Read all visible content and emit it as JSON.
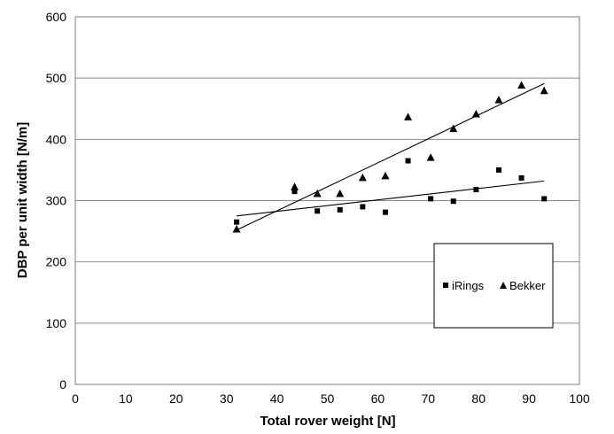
{
  "chart_data": {
    "type": "scatter",
    "title": "",
    "xlabel": "Total rover weight [N]",
    "ylabel": "DBP per unit width [N/m]",
    "xlim": [
      0,
      100
    ],
    "ylim": [
      0,
      600
    ],
    "x_ticks": [
      "0",
      "10",
      "20",
      "30",
      "40",
      "50",
      "60",
      "70",
      "80",
      "90",
      "100"
    ],
    "y_ticks": [
      "0",
      "100",
      "200",
      "300",
      "400",
      "500",
      "600"
    ],
    "grid": "horizontal",
    "legend_position": "lower-right",
    "series": [
      {
        "name": "iRings",
        "marker": "square",
        "color": "#000000",
        "points": [
          [
            32,
            265
          ],
          [
            43.5,
            315
          ],
          [
            48,
            283
          ],
          [
            52.5,
            285
          ],
          [
            57,
            290
          ],
          [
            61.5,
            281
          ],
          [
            66,
            365
          ],
          [
            70.5,
            303
          ],
          [
            75,
            299
          ],
          [
            79.5,
            318
          ],
          [
            84,
            350
          ],
          [
            88.5,
            337
          ],
          [
            93,
            303
          ]
        ],
        "trendline": [
          [
            32,
            275
          ],
          [
            93,
            332
          ]
        ]
      },
      {
        "name": "Bekker",
        "marker": "triangle",
        "color": "#000000",
        "points": [
          [
            32,
            253
          ],
          [
            43.5,
            322
          ],
          [
            48,
            311
          ],
          [
            52.5,
            311
          ],
          [
            57,
            337
          ],
          [
            61.5,
            340
          ],
          [
            66,
            436
          ],
          [
            70.5,
            370
          ],
          [
            75,
            417
          ],
          [
            79.5,
            441
          ],
          [
            84,
            464
          ],
          [
            88.5,
            488
          ],
          [
            93,
            479
          ]
        ],
        "trendline": [
          [
            32,
            252
          ],
          [
            93,
            491
          ]
        ]
      }
    ]
  }
}
